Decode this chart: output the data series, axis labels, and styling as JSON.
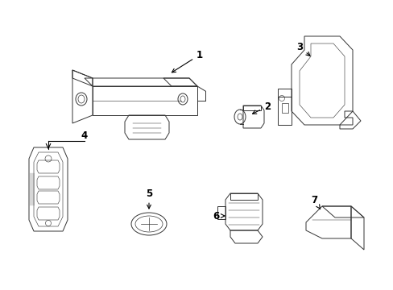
{
  "background_color": "#ffffff",
  "line_color": "#333333",
  "label_color": "#000000",
  "fig_width": 4.89,
  "fig_height": 3.6,
  "dpi": 100,
  "label_fontsize": 8.5,
  "lw": 0.7
}
